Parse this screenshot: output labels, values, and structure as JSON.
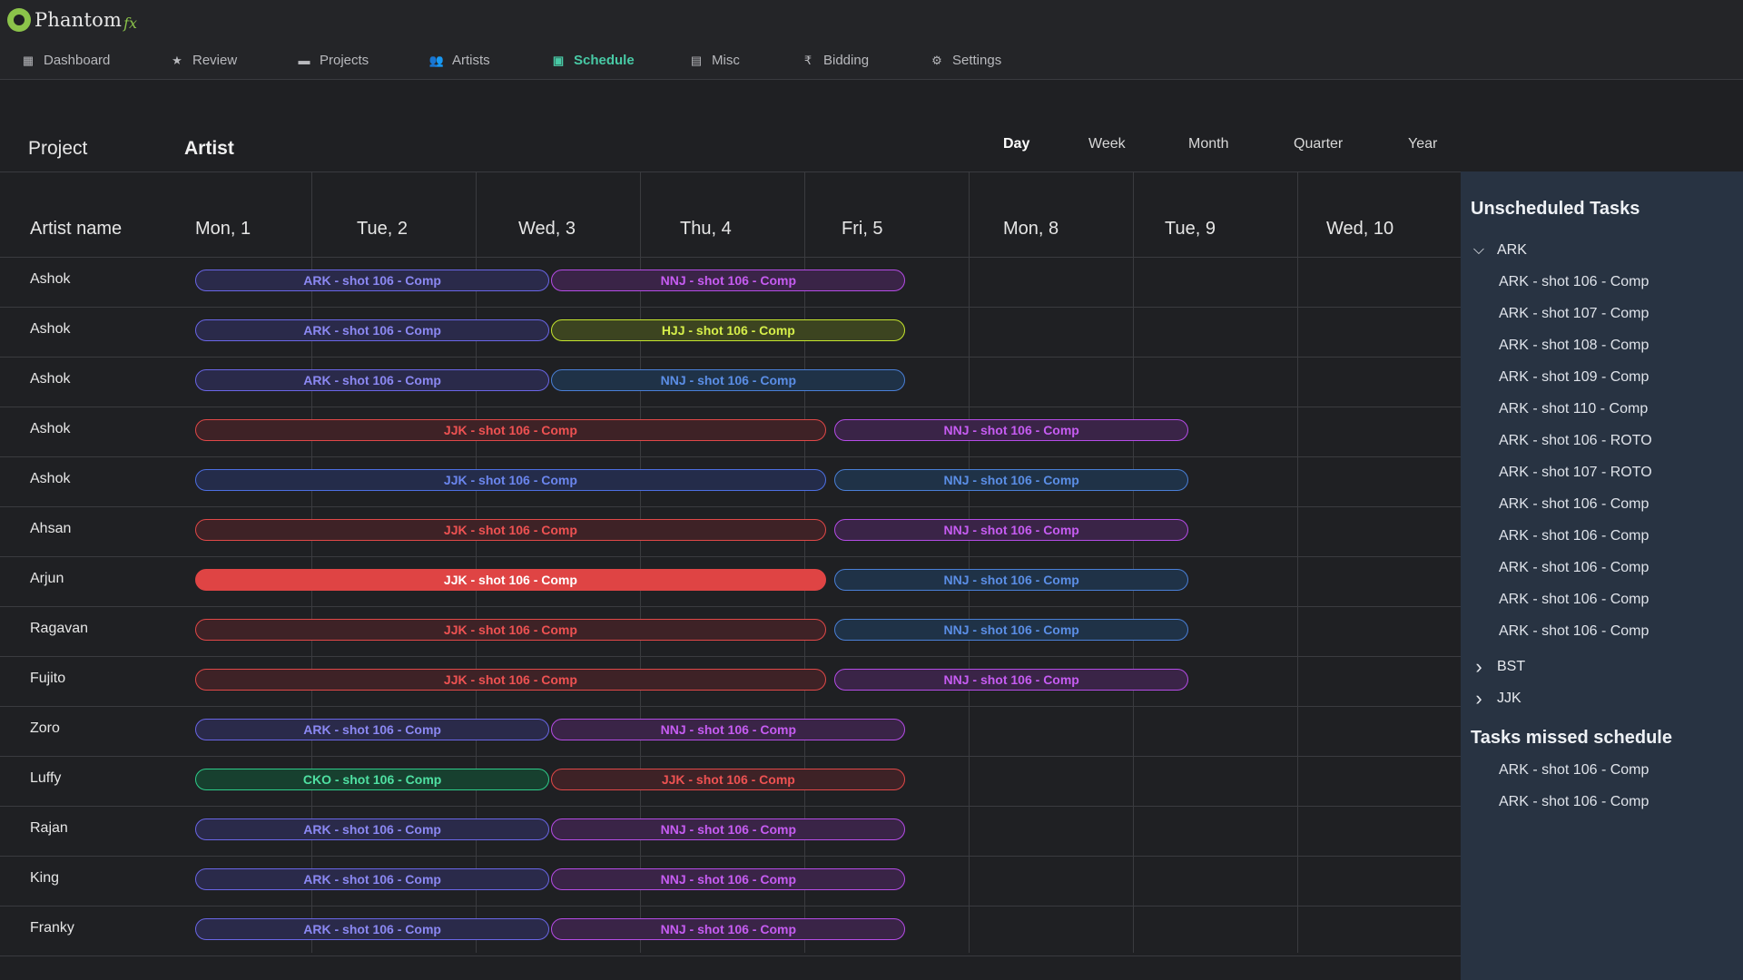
{
  "app": {
    "logo_text": "Phantom",
    "logo_suffix": "fx"
  },
  "nav": [
    {
      "label": "Dashboard",
      "icon": "dashboard-icon",
      "glyph": "▦"
    },
    {
      "label": "Review",
      "icon": "star-icon",
      "glyph": "★"
    },
    {
      "label": "Projects",
      "icon": "film-icon",
      "glyph": "▬"
    },
    {
      "label": "Artists",
      "icon": "people-icon",
      "glyph": "👥"
    },
    {
      "label": "Schedule",
      "icon": "calendar-icon",
      "glyph": "▣"
    },
    {
      "label": "Misc",
      "icon": "grid-icon",
      "glyph": "▤"
    },
    {
      "label": "Bidding",
      "icon": "rupee-icon",
      "glyph": "₹"
    },
    {
      "label": "Settings",
      "icon": "gear-icon",
      "glyph": "⚙"
    }
  ],
  "active_nav": "Schedule",
  "header": {
    "project_label": "Project",
    "artist_label": "Artist",
    "views": [
      "Day",
      "Week",
      "Month",
      "Quarter",
      "Year"
    ],
    "active_view": "Day"
  },
  "grid": {
    "artist_col_label": "Artist name",
    "days": [
      "Mon, 1",
      "Tue, 2",
      "Wed, 3",
      "Thu, 4",
      "Fri, 5",
      "Mon, 8",
      "Tue, 9",
      "Wed, 10"
    ],
    "rows": [
      {
        "artist": "Ashok",
        "tasks": [
          {
            "label": "ARK - shot 106 - Comp",
            "style": "ark",
            "start": 0,
            "span": 2.167
          },
          {
            "label": "NNJ - shot 106 - Comp",
            "style": "nnj-purple",
            "start": 2.167,
            "span": 2.167
          }
        ]
      },
      {
        "artist": "Ashok",
        "tasks": [
          {
            "label": "ARK - shot 106 - Comp",
            "style": "ark",
            "start": 0,
            "span": 2.167
          },
          {
            "label": "HJJ - shot 106 - Comp",
            "style": "hjj",
            "start": 2.167,
            "span": 2.167
          }
        ]
      },
      {
        "artist": "Ashok",
        "tasks": [
          {
            "label": "ARK - shot 106 - Comp",
            "style": "ark",
            "start": 0,
            "span": 2.167
          },
          {
            "label": "NNJ - shot 106 - Comp",
            "style": "nnj-blue",
            "start": 2.167,
            "span": 2.167
          }
        ]
      },
      {
        "artist": "Ashok",
        "tasks": [
          {
            "label": "JJK - shot 106 - Comp",
            "style": "jjk-red",
            "start": 0,
            "span": 3.85
          },
          {
            "label": "NNJ - shot 106 - Comp",
            "style": "nnj-purple",
            "start": 3.89,
            "span": 2.167
          }
        ]
      },
      {
        "artist": "Ashok",
        "tasks": [
          {
            "label": "JJK - shot 106 - Comp",
            "style": "jjk-blue",
            "start": 0,
            "span": 3.85
          },
          {
            "label": "NNJ - shot 106 - Comp",
            "style": "nnj-blue",
            "start": 3.89,
            "span": 2.167
          }
        ]
      },
      {
        "artist": "Ahsan",
        "tasks": [
          {
            "label": "JJK - shot 106 - Comp",
            "style": "jjk-red",
            "start": 0,
            "span": 3.85
          },
          {
            "label": "NNJ - shot 106 - Comp",
            "style": "nnj-purple",
            "start": 3.89,
            "span": 2.167
          }
        ]
      },
      {
        "artist": "Arjun",
        "tasks": [
          {
            "label": "JJK - shot 106 - Comp",
            "style": "jjk-solid",
            "start": 0,
            "span": 3.85
          },
          {
            "label": "NNJ - shot 106 - Comp",
            "style": "nnj-blue",
            "start": 3.89,
            "span": 2.167
          }
        ]
      },
      {
        "artist": "Ragavan",
        "tasks": [
          {
            "label": "JJK - shot 106 - Comp",
            "style": "jjk-red",
            "start": 0,
            "span": 3.85
          },
          {
            "label": "NNJ - shot 106 - Comp",
            "style": "nnj-blue",
            "start": 3.89,
            "span": 2.167
          }
        ]
      },
      {
        "artist": "Fujito",
        "tasks": [
          {
            "label": "JJK - shot 106 - Comp",
            "style": "jjk-red",
            "start": 0,
            "span": 3.85
          },
          {
            "label": "NNJ - shot 106 - Comp",
            "style": "nnj-purple",
            "start": 3.89,
            "span": 2.167
          }
        ]
      },
      {
        "artist": "Zoro",
        "tasks": [
          {
            "label": "ARK - shot 106 - Comp",
            "style": "ark",
            "start": 0,
            "span": 2.167
          },
          {
            "label": "NNJ - shot 106 - Comp",
            "style": "nnj-purple",
            "start": 2.167,
            "span": 2.167
          }
        ]
      },
      {
        "artist": "Luffy",
        "tasks": [
          {
            "label": "CKO - shot 106 - Comp",
            "style": "cko",
            "start": 0,
            "span": 2.167
          },
          {
            "label": "JJK - shot 106 - Comp",
            "style": "jjk-red",
            "start": 2.167,
            "span": 2.167
          }
        ]
      },
      {
        "artist": "Rajan",
        "tasks": [
          {
            "label": "ARK - shot 106 - Comp",
            "style": "ark",
            "start": 0,
            "span": 2.167
          },
          {
            "label": "NNJ - shot 106 - Comp",
            "style": "nnj-purple",
            "start": 2.167,
            "span": 2.167
          }
        ]
      },
      {
        "artist": "King",
        "tasks": [
          {
            "label": "ARK - shot 106 - Comp",
            "style": "ark",
            "start": 0,
            "span": 2.167
          },
          {
            "label": "NNJ - shot 106 - Comp",
            "style": "nnj-purple",
            "start": 2.167,
            "span": 2.167
          }
        ]
      },
      {
        "artist": "Franky",
        "tasks": [
          {
            "label": "ARK - shot 106 - Comp",
            "style": "ark",
            "start": 0,
            "span": 2.167
          },
          {
            "label": "NNJ - shot 106 - Comp",
            "style": "nnj-purple",
            "start": 2.167,
            "span": 2.167
          }
        ]
      }
    ]
  },
  "task_styles": {
    "ark": {
      "border": "#6a66e6",
      "bg": "#2a2a4a",
      "text": "#8b88f2"
    },
    "nnj-purple": {
      "border": "#b54ce6",
      "bg": "#3a2447",
      "text": "#c65cf2"
    },
    "nnj-blue": {
      "border": "#4a7fd6",
      "bg": "#1f3247",
      "text": "#5b8ee6"
    },
    "hjj": {
      "border": "#c6e62e",
      "bg": "#3c4420",
      "text": "#d6ef4a"
    },
    "jjk-red": {
      "border": "#e04848",
      "bg": "#3e2226",
      "text": "#ee5252"
    },
    "jjk-blue": {
      "border": "#4d6fe2",
      "bg": "#242c4a",
      "text": "#6b86ee"
    },
    "jjk-solid": {
      "border": "#e04545",
      "bg": "#df4444",
      "text": "#ffffff"
    },
    "cko": {
      "border": "#2ecc8a",
      "bg": "#17402f",
      "text": "#4fe0a2"
    }
  },
  "panel": {
    "unscheduled_title": "Unscheduled Tasks",
    "groups": [
      {
        "name": "ARK",
        "expanded": true,
        "tasks": [
          "ARK - shot 106 - Comp",
          "ARK - shot 107 - Comp",
          "ARK - shot 108 - Comp",
          "ARK - shot 109 - Comp",
          "ARK - shot 110 - Comp",
          "ARK - shot 106 - ROTO",
          "ARK - shot 107 - ROTO",
          "ARK - shot 106 - Comp",
          "ARK - shot 106 - Comp",
          "ARK - shot 106 - Comp",
          "ARK - shot 106 - Comp",
          "ARK - shot 106 - Comp"
        ]
      },
      {
        "name": "BST",
        "expanded": false,
        "tasks": []
      },
      {
        "name": "JJK",
        "expanded": false,
        "tasks": []
      }
    ],
    "missed_title": "Tasks missed schedule",
    "missed_tasks": [
      "ARK - shot 106 - Comp",
      "ARK - shot 106 - Comp"
    ]
  }
}
